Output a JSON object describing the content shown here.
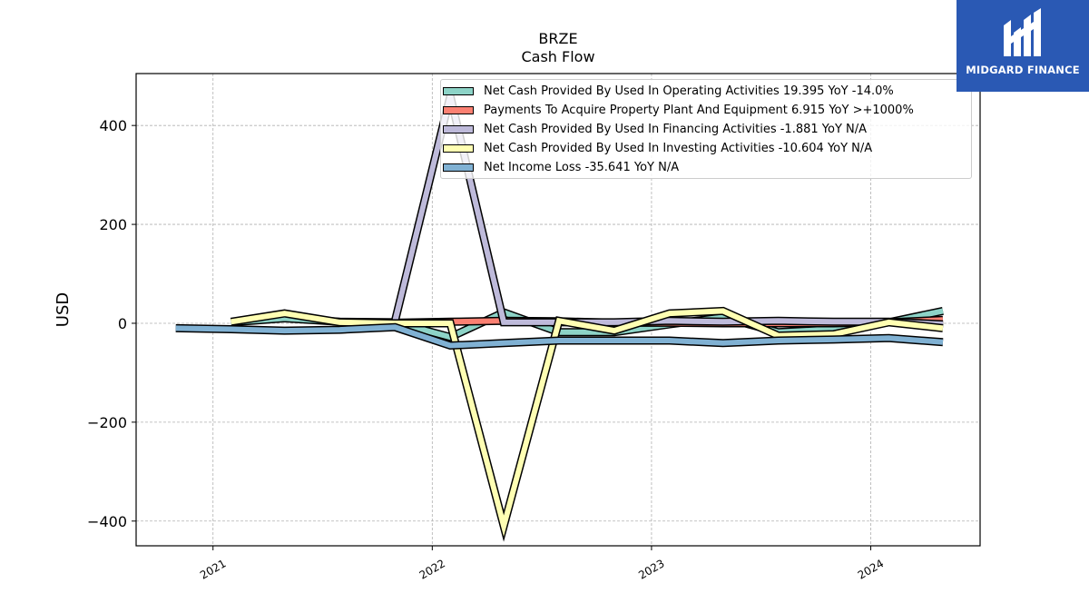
{
  "logo": {
    "text": "MIDGARD FINANCE",
    "icon": "midgard-m-icon",
    "background": "#2a59b4"
  },
  "chart_data": {
    "type": "line",
    "title": "BRZE",
    "subtitle": "Cash Flow",
    "xlabel": "",
    "ylabel": "USD",
    "ylim": [
      -450,
      505
    ],
    "xlim": [
      "2020-08-26",
      "2024-07-01"
    ],
    "x_ticks": [
      "2021",
      "2022",
      "2023",
      "2024"
    ],
    "y_ticks": [
      "−400",
      "−200",
      "0",
      "200",
      "400"
    ],
    "grid": true,
    "legend_position": "top-right",
    "series": [
      {
        "name": "Net Cash Provided By Used In Operating Activities",
        "legend": "Net Cash Provided By Used In Operating Activities  19.395 YoY -14.0%",
        "color": "#8dd3c7",
        "x": [
          "2021-01-31",
          "2021-04-30",
          "2021-07-31",
          "2021-10-31",
          "2022-01-31",
          "2022-04-30",
          "2022-07-31",
          "2022-10-31",
          "2023-01-31",
          "2023-04-30",
          "2023-07-31",
          "2023-10-31",
          "2024-01-31",
          "2024-04-30"
        ],
        "values": [
          2,
          10,
          3,
          2,
          -28,
          22,
          -18,
          -18,
          -2,
          12,
          -18,
          -12,
          2,
          25
        ]
      },
      {
        "name": "Payments To Acquire Property Plant And Equipment",
        "legend": "Payments To Acquire Property Plant And Equipment  6.915 YoY >+1000%",
        "color": "#fb8072",
        "x": [
          "2021-10-31",
          "2022-01-31",
          "2022-04-30",
          "2022-07-31",
          "2022-10-31",
          "2023-01-31",
          "2023-04-30",
          "2023-07-31",
          "2023-10-31",
          "2024-01-31",
          "2024-04-30"
        ],
        "values": [
          1,
          3,
          5,
          4,
          1,
          1,
          0,
          0,
          0,
          2,
          7
        ]
      },
      {
        "name": "Net Cash Provided By Used In Financing Activities",
        "legend": "Net Cash Provided By Used In Financing Activities  -1.881 YoY N/A",
        "color": "#bebada",
        "x": [
          "2021-10-31",
          "2022-01-31",
          "2022-04-30",
          "2022-07-31",
          "2022-10-31",
          "2023-01-31",
          "2023-04-30",
          "2023-07-31",
          "2023-10-31",
          "2024-01-31",
          "2024-04-30"
        ],
        "values": [
          5,
          460,
          2,
          2,
          2,
          5,
          3,
          5,
          3,
          3,
          -2
        ]
      },
      {
        "name": "Net Cash Provided By Used In Investing Activities",
        "legend": "Net Cash Provided By Used In Investing Activities  -10.604 YoY N/A",
        "color": "#ffffb3",
        "x": [
          "2021-01-31",
          "2021-04-30",
          "2021-07-31",
          "2021-10-31",
          "2022-01-31",
          "2022-04-30",
          "2022-07-31",
          "2022-10-31",
          "2023-01-31",
          "2023-04-30",
          "2023-07-31",
          "2023-10-31",
          "2024-01-31",
          "2024-04-30"
        ],
        "values": [
          3,
          20,
          2,
          0,
          0,
          -410,
          5,
          -15,
          20,
          25,
          -25,
          -22,
          2,
          -10
        ]
      },
      {
        "name": "Net Income Loss",
        "legend": "Net Income Loss  -35.641 YoY N/A",
        "color": "#80b1d3",
        "x": [
          "2020-10-31",
          "2021-01-31",
          "2021-04-30",
          "2021-07-31",
          "2021-10-31",
          "2022-01-31",
          "2022-04-30",
          "2022-07-31",
          "2022-10-31",
          "2023-01-31",
          "2023-04-30",
          "2023-07-31",
          "2023-10-31",
          "2024-01-31",
          "2024-04-30"
        ],
        "values": [
          -10,
          -12,
          -15,
          -13,
          -8,
          -45,
          -40,
          -35,
          -35,
          -35,
          -40,
          -35,
          -33,
          -30,
          -38
        ]
      }
    ]
  }
}
